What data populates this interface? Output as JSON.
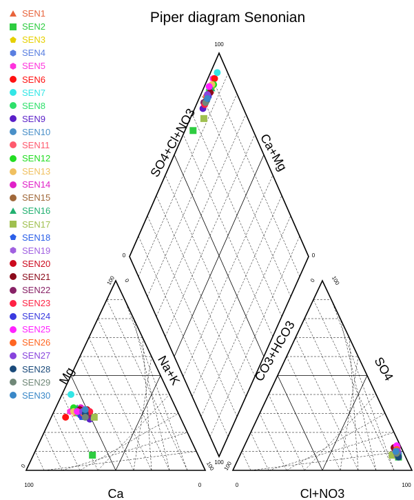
{
  "chart_data": {
    "type": "scatter",
    "subtype": "piper",
    "title": "Piper diagram Senonian",
    "axis_titles": {
      "cation_left": "Mg",
      "cation_right": "Na+K",
      "cation_bottom": "Ca",
      "anion_left": "CO3+HCO3",
      "anion_right": "SO4",
      "anion_bottom": "Cl+NO3",
      "diamond_left": "SO4+Cl+NO3",
      "diamond_right": "Ca+Mg"
    },
    "tick_labels": {
      "zero": "0",
      "hundred": "100"
    },
    "grid": true,
    "legend_position": "left",
    "series": [
      {
        "name": "SEN1",
        "color": "#e8643c",
        "marker": "triangle",
        "cation": {
          "ca": 57,
          "mg": 30,
          "nak": 13
        },
        "anion": {
          "cl": 88,
          "so4": 8,
          "hco3": 4
        }
      },
      {
        "name": "SEN2",
        "color": "#2ecc40",
        "marker": "square",
        "cation": {
          "ca": 59,
          "mg": 8,
          "nak": 33
        },
        "anion": {
          "cl": 89,
          "so4": 7,
          "hco3": 4
        }
      },
      {
        "name": "SEN3",
        "color": "#e6d000",
        "marker": "pentagon",
        "cation": {
          "ca": 56,
          "mg": 32,
          "nak": 12
        },
        "anion": {
          "cl": 87,
          "so4": 9,
          "hco3": 4
        }
      },
      {
        "name": "SEN4",
        "color": "#5a7fe0",
        "marker": "hexagon",
        "cation": {
          "ca": 53,
          "mg": 28,
          "nak": 19
        },
        "anion": {
          "cl": 88,
          "so4": 8,
          "hco3": 4
        }
      },
      {
        "name": "SEN5",
        "color": "#ff33dd",
        "marker": "hexagon",
        "cation": {
          "ca": 60,
          "mg": 31,
          "nak": 9
        },
        "anion": {
          "cl": 86,
          "so4": 12,
          "hco3": 2
        }
      },
      {
        "name": "SEN6",
        "color": "#ff1111",
        "marker": "circle",
        "cation": {
          "ca": 64,
          "mg": 28,
          "nak": 8
        },
        "anion": {
          "cl": 87,
          "so4": 10,
          "hco3": 3
        }
      },
      {
        "name": "SEN7",
        "color": "#33e6e6",
        "marker": "circle",
        "cation": {
          "ca": 55,
          "mg": 40,
          "nak": 5
        },
        "anion": {
          "cl": 86,
          "so4": 11,
          "hco3": 3
        }
      },
      {
        "name": "SEN8",
        "color": "#2ee06a",
        "marker": "circle",
        "cation": {
          "ca": 56,
          "mg": 30,
          "nak": 14
        },
        "anion": {
          "cl": 85,
          "so4": 12,
          "hco3": 3
        }
      },
      {
        "name": "SEN9",
        "color": "#5a1fc8",
        "marker": "circle",
        "cation": {
          "ca": 51,
          "mg": 27,
          "nak": 22
        },
        "anion": {
          "cl": 86,
          "so4": 10,
          "hco3": 4
        }
      },
      {
        "name": "SEN10",
        "color": "#4a90c8",
        "marker": "circle",
        "cation": {
          "ca": 52,
          "mg": 32,
          "nak": 16
        },
        "anion": {
          "cl": 88,
          "so4": 9,
          "hco3": 3
        }
      },
      {
        "name": "SEN11",
        "color": "#ff5a6e",
        "marker": "circle",
        "cation": {
          "ca": 54,
          "mg": 29,
          "nak": 17
        },
        "anion": {
          "cl": 86,
          "so4": 11,
          "hco3": 3
        }
      },
      {
        "name": "SEN12",
        "color": "#22dd22",
        "marker": "circle",
        "cation": {
          "ca": 57,
          "mg": 33,
          "nak": 10
        },
        "anion": {
          "cl": 87,
          "so4": 9,
          "hco3": 4
        }
      },
      {
        "name": "SEN13",
        "color": "#f0c060",
        "marker": "circle",
        "cation": {
          "ca": 58,
          "mg": 31,
          "nak": 11
        },
        "anion": {
          "cl": 85,
          "so4": 12,
          "hco3": 3
        }
      },
      {
        "name": "SEN14",
        "color": "#e022c8",
        "marker": "circle",
        "cation": {
          "ca": 53,
          "mg": 33,
          "nak": 14
        },
        "anion": {
          "cl": 88,
          "so4": 8,
          "hco3": 4
        }
      },
      {
        "name": "SEN15",
        "color": "#a0683a",
        "marker": "circle",
        "cation": {
          "ca": 52,
          "mg": 31,
          "nak": 17
        },
        "anion": {
          "cl": 86,
          "so4": 11,
          "hco3": 3
        }
      },
      {
        "name": "SEN16",
        "color": "#22b070",
        "marker": "triangle",
        "cation": {
          "ca": 55,
          "mg": 33,
          "nak": 12
        },
        "anion": {
          "cl": 88,
          "so4": 8,
          "hco3": 4
        }
      },
      {
        "name": "SEN17",
        "color": "#a0c050",
        "marker": "square",
        "cation": {
          "ca": 48,
          "mg": 28,
          "nak": 24
        },
        "anion": {
          "cl": 85,
          "so4": 8,
          "hco3": 7
        }
      },
      {
        "name": "SEN18",
        "color": "#2b5fe8",
        "marker": "pentagon",
        "cation": {
          "ca": 55,
          "mg": 28,
          "nak": 17
        },
        "anion": {
          "cl": 87,
          "so4": 9,
          "hco3": 4
        }
      },
      {
        "name": "SEN19",
        "color": "#a060e0",
        "marker": "hexagon",
        "cation": {
          "ca": 54,
          "mg": 30,
          "nak": 16
        },
        "anion": {
          "cl": 86,
          "so4": 10,
          "hco3": 4
        }
      },
      {
        "name": "SEN20",
        "color": "#cc0a1e",
        "marker": "circle",
        "cation": {
          "ca": 50,
          "mg": 32,
          "nak": 18
        },
        "anion": {
          "cl": 85,
          "so4": 11,
          "hco3": 4
        }
      },
      {
        "name": "SEN21",
        "color": "#8b0a1a",
        "marker": "circle",
        "cation": {
          "ca": 54,
          "mg": 32,
          "nak": 14
        },
        "anion": {
          "cl": 84,
          "so4": 12,
          "hco3": 4
        }
      },
      {
        "name": "SEN22",
        "color": "#882266",
        "marker": "circle",
        "cation": {
          "ca": 51,
          "mg": 29,
          "nak": 20
        },
        "anion": {
          "cl": 86,
          "so4": 11,
          "hco3": 3
        }
      },
      {
        "name": "SEN23",
        "color": "#ff2244",
        "marker": "circle",
        "cation": {
          "ca": 49,
          "mg": 31,
          "nak": 20
        },
        "anion": {
          "cl": 87,
          "so4": 9,
          "hco3": 4
        }
      },
      {
        "name": "SEN24",
        "color": "#3a3adf",
        "marker": "circle",
        "cation": {
          "ca": 55,
          "mg": 29,
          "nak": 16
        },
        "anion": {
          "cl": 88,
          "so4": 8,
          "hco3": 4
        }
      },
      {
        "name": "SEN25",
        "color": "#ff22ff",
        "marker": "circle",
        "cation": {
          "ca": 56,
          "mg": 31,
          "nak": 13
        },
        "anion": {
          "cl": 85,
          "so4": 13,
          "hco3": 2
        }
      },
      {
        "name": "SEN26",
        "color": "#ff6622",
        "marker": "circle",
        "cation": {
          "ca": 53,
          "mg": 30,
          "nak": 17
        },
        "anion": {
          "cl": 86,
          "so4": 11,
          "hco3": 3
        }
      },
      {
        "name": "SEN27",
        "color": "#8844dd",
        "marker": "circle",
        "cation": {
          "ca": 53,
          "mg": 31,
          "nak": 16
        },
        "anion": {
          "cl": 87,
          "so4": 10,
          "hco3": 3
        }
      },
      {
        "name": "SEN28",
        "color": "#1a4a7a",
        "marker": "circle",
        "cation": {
          "ca": 52,
          "mg": 30,
          "nak": 18
        },
        "anion": {
          "cl": 89,
          "so4": 7,
          "hco3": 4
        }
      },
      {
        "name": "SEN29",
        "color": "#708878",
        "marker": "circle",
        "cation": {
          "ca": 53,
          "mg": 28,
          "nak": 19
        },
        "anion": {
          "cl": 87,
          "so4": 9,
          "hco3": 4
        }
      },
      {
        "name": "SEN30",
        "color": "#3a88c8",
        "marker": "circle",
        "cation": {
          "ca": 51,
          "mg": 32,
          "nak": 17
        },
        "anion": {
          "cl": 86,
          "so4": 10,
          "hco3": 4
        }
      }
    ]
  }
}
